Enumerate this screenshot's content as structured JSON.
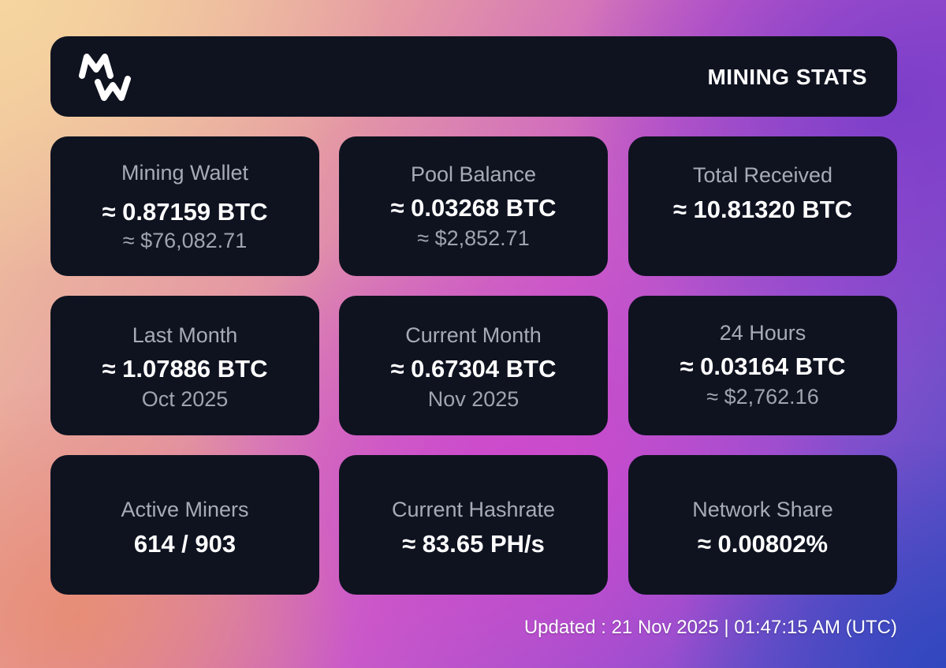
{
  "header": {
    "logo_icon": "mw-logo-icon",
    "title": "MINING STATS"
  },
  "cards": [
    {
      "label": "Mining Wallet",
      "value": "≈ 0.87159 BTC",
      "sub": "≈ $76,082.71"
    },
    {
      "label": "Pool Balance",
      "value": "≈ 0.03268 BTC",
      "sub": "≈ $2,852.71"
    },
    {
      "label": "Total Received",
      "value": "≈ 10.81320 BTC",
      "sub": ""
    },
    {
      "label": "Last Month",
      "value": "≈ 1.07886 BTC",
      "sub": "Oct 2025"
    },
    {
      "label": "Current Month",
      "value": "≈ 0.67304 BTC",
      "sub": "Nov 2025"
    },
    {
      "label": "24 Hours",
      "value": "≈ 0.03164 BTC",
      "sub": "≈ $2,762.16"
    },
    {
      "label": "Active Miners",
      "value": "614 / 903",
      "sub": ""
    },
    {
      "label": "Current Hashrate",
      "value": "≈ 83.65 PH/s",
      "sub": ""
    },
    {
      "label": "Network Share",
      "value": "≈ 0.00802%",
      "sub": ""
    }
  ],
  "footer": {
    "updated": "Updated : 21 Nov 2025 | 01:47:15 AM (UTC)"
  }
}
